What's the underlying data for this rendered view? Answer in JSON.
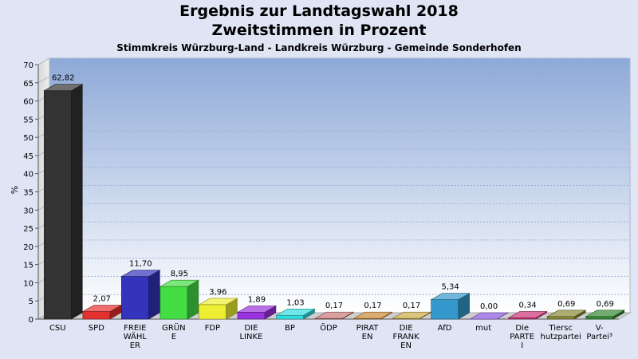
{
  "chart_data": {
    "type": "bar",
    "title": "Ergebnis zur Landtagswahl 2018",
    "subtitle": "Zweitstimmen in Prozent",
    "subsubtitle": "Stimmkreis Würzburg-Land - Landkreis Würzburg - Gemeinde Sonderhofen",
    "ylabel": "%",
    "ylim": [
      0,
      70
    ],
    "yticks": [
      0,
      5,
      10,
      15,
      20,
      25,
      30,
      35,
      40,
      45,
      50,
      55,
      60,
      65,
      70
    ],
    "grid": true,
    "categories": [
      [
        "CSU"
      ],
      [
        "SPD"
      ],
      [
        "FREIE",
        "WÄHL",
        "ER"
      ],
      [
        "GRÜN",
        "E"
      ],
      [
        "FDP"
      ],
      [
        "DIE",
        "LINKE"
      ],
      [
        "BP"
      ],
      [
        "ÖDP"
      ],
      [
        "PIRAT",
        "EN"
      ],
      [
        "DIE",
        "FRANK",
        "EN"
      ],
      [
        "AfD"
      ],
      [
        "mut"
      ],
      [
        "Die",
        "PARTE",
        "I"
      ],
      [
        "Tiersc",
        "hutzpartei"
      ],
      [
        "V-",
        "Partei³"
      ]
    ],
    "values": [
      62.82,
      2.07,
      11.7,
      8.95,
      3.96,
      1.89,
      1.03,
      0.17,
      0.17,
      0.17,
      5.34,
      0.0,
      0.34,
      0.69,
      0.69
    ],
    "value_labels": [
      "62,82",
      "2,07",
      "11,70",
      "8,95",
      "3,96",
      "1,89",
      "1,03",
      "0,17",
      "0,17",
      "0,17",
      "5,34",
      "0,00",
      "0,34",
      "0,69",
      "0,69"
    ],
    "colors": [
      "#333333",
      "#e53030",
      "#3333bb",
      "#44dd44",
      "#eeee33",
      "#9933dd",
      "#33dddd",
      "#cc7777",
      "#cc8833",
      "#ccaa44",
      "#3399cc",
      "#8855dd",
      "#cc3377",
      "#888833",
      "#338833"
    ]
  }
}
